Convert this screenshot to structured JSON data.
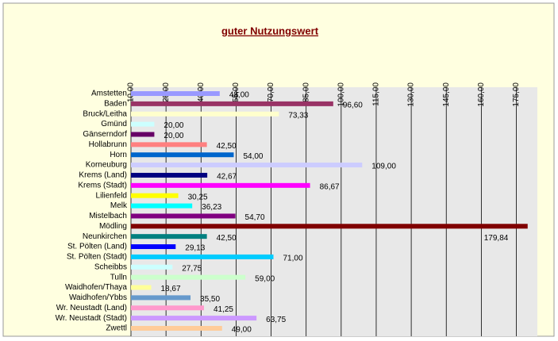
{
  "chart_data": {
    "type": "bar",
    "orientation": "horizontal",
    "title": "guter Nutzungswert",
    "categories": [
      "Amstetten",
      "Baden",
      "Bruck/Leitha",
      "Gmünd",
      "Gänserndorf",
      "Hollabrunn",
      "Horn",
      "Korneuburg",
      "Krems (Land)",
      "Krems (Stadt)",
      "Lilienfeld",
      "Melk",
      "Mistelbach",
      "Mödling",
      "Neunkirchen",
      "St. Pölten (Land)",
      "St. Pölten (Stadt)",
      "Scheibbs",
      "Tulln",
      "Waidhofen/Thaya",
      "Waidhofen/Ybbs",
      "Wr. Neustadt (Land)",
      "Wr. Neustadt (Stadt)",
      "Zwettl"
    ],
    "values": [
      48,
      96.6,
      73.33,
      20,
      20,
      42.5,
      54,
      109,
      42.67,
      86.67,
      30.25,
      36.23,
      54.7,
      179.84,
      42.5,
      29.13,
      71,
      27.75,
      59,
      18.67,
      35.5,
      41.25,
      63.75,
      49
    ],
    "value_labels": [
      "48,00",
      "96,60",
      "73,33",
      "20,00",
      "20,00",
      "42,50",
      "54,00",
      "109,00",
      "42,67",
      "86,67",
      "30,25",
      "36,23",
      "54,70",
      "179,84",
      "42,50",
      "29,13",
      "71,00",
      "27,75",
      "59,00",
      "18,67",
      "35,50",
      "41,25",
      "63,75",
      "49,00"
    ],
    "colors": [
      "#9999ff",
      "#993366",
      "#ffffcc",
      "#ccffff",
      "#660066",
      "#ff8080",
      "#0066cc",
      "#ccccff",
      "#000080",
      "#ff00ff",
      "#ffff00",
      "#00ffff",
      "#800080",
      "#800000",
      "#008080",
      "#0000ff",
      "#00ccff",
      "#ccffff",
      "#ccffcc",
      "#ffff99",
      "#6699cc",
      "#ff99cc",
      "#cc99ff",
      "#ffcc99"
    ],
    "xlim": [
      10,
      184
    ],
    "xticks": [
      {
        "value": 10,
        "label": "10,00"
      },
      {
        "value": 25,
        "label": "25,00"
      },
      {
        "value": 40,
        "label": "40,00"
      },
      {
        "value": 55,
        "label": "55,00"
      },
      {
        "value": 70,
        "label": "70,00"
      },
      {
        "value": 85,
        "label": "85,00"
      },
      {
        "value": 100,
        "label": "100,00"
      },
      {
        "value": 115,
        "label": "115,00"
      },
      {
        "value": 130,
        "label": "130,00"
      },
      {
        "value": 145,
        "label": "145,00"
      },
      {
        "value": 160,
        "label": "160,00"
      },
      {
        "value": 175,
        "label": "175,00"
      }
    ],
    "grid": true
  }
}
